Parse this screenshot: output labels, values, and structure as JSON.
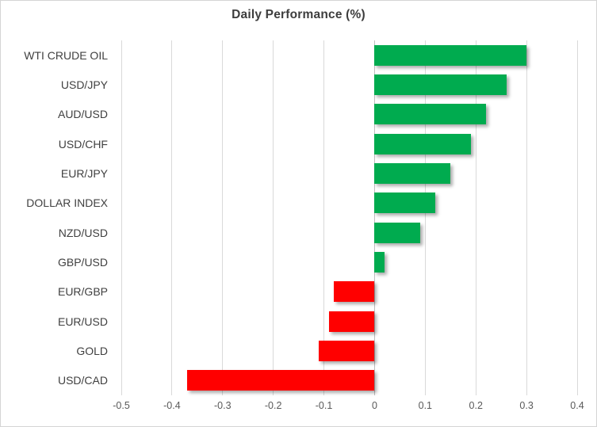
{
  "chart_data": {
    "type": "bar",
    "orientation": "horizontal",
    "title": "Daily Performance (%)",
    "categories": [
      "WTI CRUDE OIL",
      "USD/JPY",
      "AUD/USD",
      "USD/CHF",
      "EUR/JPY",
      "DOLLAR INDEX",
      "NZD/USD",
      "GBP/USD",
      "EUR/GBP",
      "EUR/USD",
      "GOLD",
      "USD/CAD"
    ],
    "values": [
      0.3,
      0.26,
      0.22,
      0.19,
      0.15,
      0.12,
      0.09,
      0.02,
      -0.08,
      -0.09,
      -0.11,
      -0.37
    ],
    "xlim": [
      -0.5,
      0.4
    ],
    "x_ticks": [
      -0.5,
      -0.4,
      -0.3,
      -0.2,
      -0.1,
      0,
      0.1,
      0.2,
      0.3,
      0.4
    ],
    "x_tick_labels": [
      "-0.5",
      "-0.4",
      "-0.3",
      "-0.2",
      "-0.1",
      "0",
      "0.1",
      "0.2",
      "0.3",
      "0.4"
    ],
    "grid": true,
    "legend": false,
    "colors": {
      "positive": "#00ab4f",
      "negative": "#ff0000",
      "gridline": "#d9d9d9",
      "zero_line": "#bfbfbf",
      "title_text": "#3d3d3d",
      "category_text": "#404040",
      "tick_text": "#595959",
      "border": "#d5d5d5",
      "background": "#ffffff"
    }
  }
}
